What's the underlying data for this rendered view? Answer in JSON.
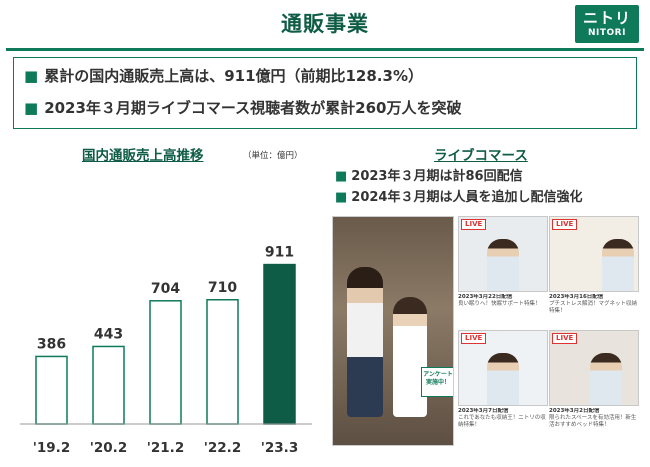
{
  "header": {
    "title": "通販事業",
    "logo_jp": "ニトリ",
    "logo_en": "NITORI"
  },
  "highlights": [
    "累計の国内通販売上高は、911億円（前期比128.3%）",
    "2023年３月期ライブコマース視聴者数が累計260万人を突破"
  ],
  "chart_data": {
    "type": "bar",
    "title": "国内通販売上高推移",
    "unit_label": "（単位：億円）",
    "categories": [
      "'19.2",
      "'20.2",
      "'21.2",
      "'22.2",
      "'23.3"
    ],
    "values": [
      386,
      443,
      704,
      710,
      911
    ],
    "ylim": [
      0,
      1000
    ],
    "grid": false,
    "colors": {
      "default_fill": "#ffffff",
      "default_stroke": "#0f7a5a",
      "highlight_fill": "#0f5c46",
      "highlight_index": 4
    }
  },
  "live_commerce": {
    "title": "ライブコマース",
    "points": [
      "2023年３月期は計86回配信",
      "2024年３月期は人員を追加し配信強化"
    ],
    "badge": "LIVE",
    "big_bubble": "アンケート実施中！",
    "thumbs": [
      {
        "date": "2023年3月22日配信",
        "caption": "良い眠りへ！快眠サポート特集！"
      },
      {
        "date": "2023年3月16日配信",
        "caption": "プチストレス解消！マグネット収納特集！"
      },
      {
        "date": "2023年3月7日配信",
        "caption": "これであなたも収納王！ニトリの収納特集！"
      },
      {
        "date": "2023年3月2日配信",
        "caption": "限られたスペースを有効活用！新生活おすすめベッド特集！"
      }
    ]
  }
}
